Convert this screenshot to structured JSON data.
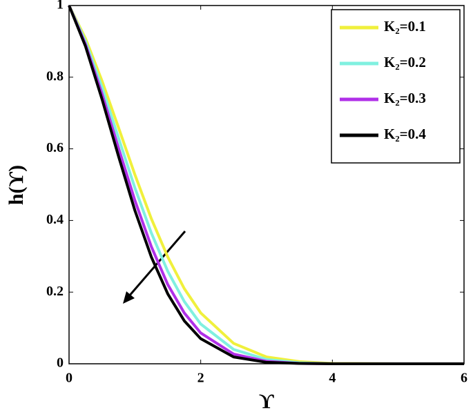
{
  "chart_data": {
    "type": "line",
    "x_label": "ϒ",
    "y_label": "h(ϒ)",
    "x": [
      0,
      0.25,
      0.5,
      0.75,
      1,
      1.25,
      1.5,
      1.75,
      2,
      2.5,
      3,
      3.5,
      4,
      5,
      6
    ],
    "series": [
      {
        "name": "K₂=0.1",
        "color": "#f0f03c",
        "values": [
          1,
          0.908,
          0.79,
          0.66,
          0.528,
          0.405,
          0.298,
          0.21,
          0.142,
          0.057,
          0.019,
          0.006,
          0.001,
          0,
          0
        ]
      },
      {
        "name": "K₂=0.2",
        "color": "#80f0e0",
        "values": [
          1,
          0.9,
          0.772,
          0.631,
          0.491,
          0.365,
          0.258,
          0.174,
          0.111,
          0.04,
          0.012,
          0.003,
          0,
          0,
          0
        ]
      },
      {
        "name": "K₂=0.3",
        "color": "#b030e8",
        "values": [
          1,
          0.892,
          0.754,
          0.603,
          0.456,
          0.327,
          0.221,
          0.142,
          0.086,
          0.027,
          0.007,
          0.001,
          0,
          0,
          0
        ]
      },
      {
        "name": "K₂=0.4",
        "color": "#000000",
        "values": [
          1,
          0.886,
          0.739,
          0.58,
          0.428,
          0.298,
          0.195,
          0.12,
          0.07,
          0.019,
          0.004,
          0.001,
          0,
          0,
          0
        ]
      }
    ],
    "xlim": [
      0,
      6
    ],
    "xticks": [
      0,
      2,
      4,
      6
    ],
    "ylim": [
      0,
      1
    ],
    "yticks": [
      0,
      0.2,
      0.4,
      0.6,
      0.8,
      1
    ],
    "legend": "upper right",
    "grid": false
  }
}
